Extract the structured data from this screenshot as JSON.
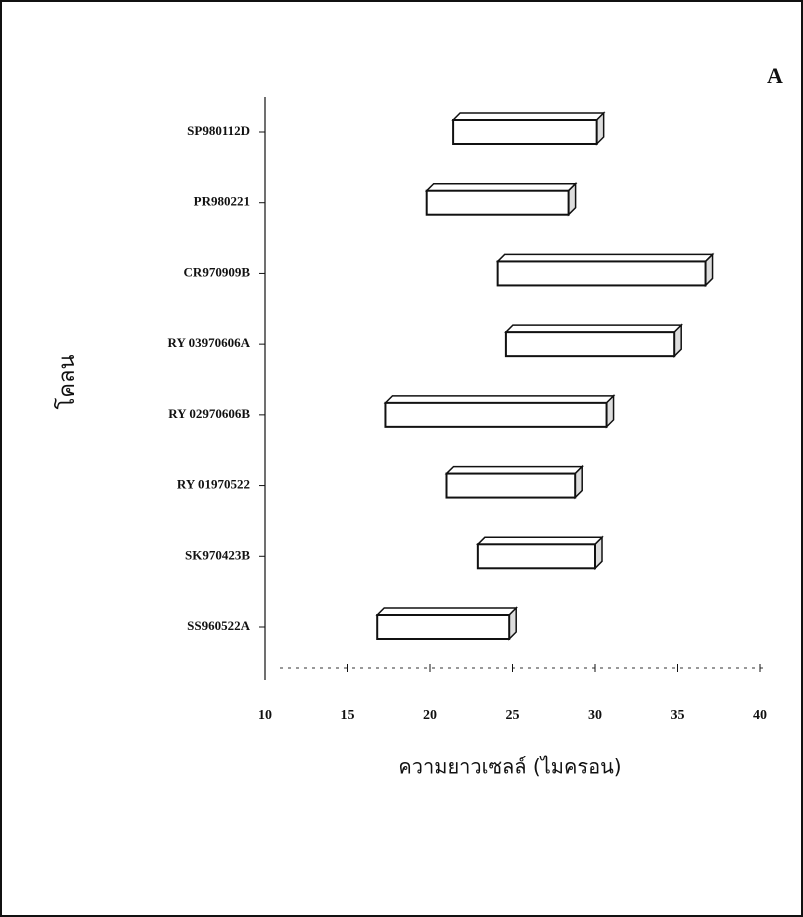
{
  "chart_data": {
    "type": "floating-bar",
    "panel_label": "A",
    "x_label": "ความยาวเซลล์ (ไมครอน)",
    "y_label": "โคลน",
    "categories": [
      "SP980112D",
      "PR980221",
      "CR970909B",
      "RY 03970606A",
      "RY 02970606B",
      "RY 01970522",
      "SK970423B",
      "SS960522A"
    ],
    "low": [
      21.4,
      19.8,
      24.1,
      24.6,
      17.3,
      21.0,
      22.9,
      16.8
    ],
    "high": [
      30.1,
      28.4,
      36.7,
      34.8,
      30.7,
      28.8,
      30.0,
      24.8
    ],
    "color": "#ffffff",
    "xlim": [
      10,
      40
    ],
    "xticks": [
      10,
      15,
      20,
      25,
      30,
      35,
      40
    ]
  }
}
